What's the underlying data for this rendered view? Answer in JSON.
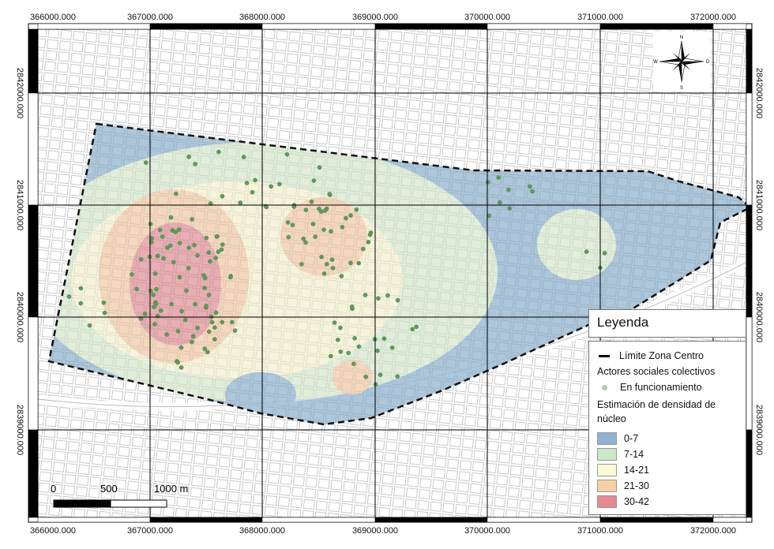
{
  "map": {
    "x_ticks": [
      "366000.000",
      "367000.000",
      "368000.000",
      "369000.000",
      "370000.000",
      "371000.000",
      "372000.000"
    ],
    "y_ticks": [
      "2842000.000",
      "2841000.000",
      "2840000.000",
      "2839000.000"
    ],
    "north_arrow": {
      "n": "N",
      "s": "S",
      "e": "O",
      "w": "W"
    },
    "scale_bar": {
      "labels": [
        "0",
        "500",
        "1000 m"
      ]
    }
  },
  "legend": {
    "title": "Leyenda",
    "boundary_label": "Límite Zona Centro",
    "actors_heading": "Actores sociales colectivos",
    "actors_label": "En funcionamiento",
    "actors_color": "#a7d49b",
    "density_heading": "Estimación de densidad de núcleo",
    "classes": [
      {
        "label": "0-7",
        "color": "#8fb3d1"
      },
      {
        "label": "7-14",
        "color": "#cde7c9"
      },
      {
        "label": "14-21",
        "color": "#fbf8d6"
      },
      {
        "label": "21-30",
        "color": "#f6cfa5"
      },
      {
        "label": "30-42",
        "color": "#e48a90"
      }
    ]
  }
}
